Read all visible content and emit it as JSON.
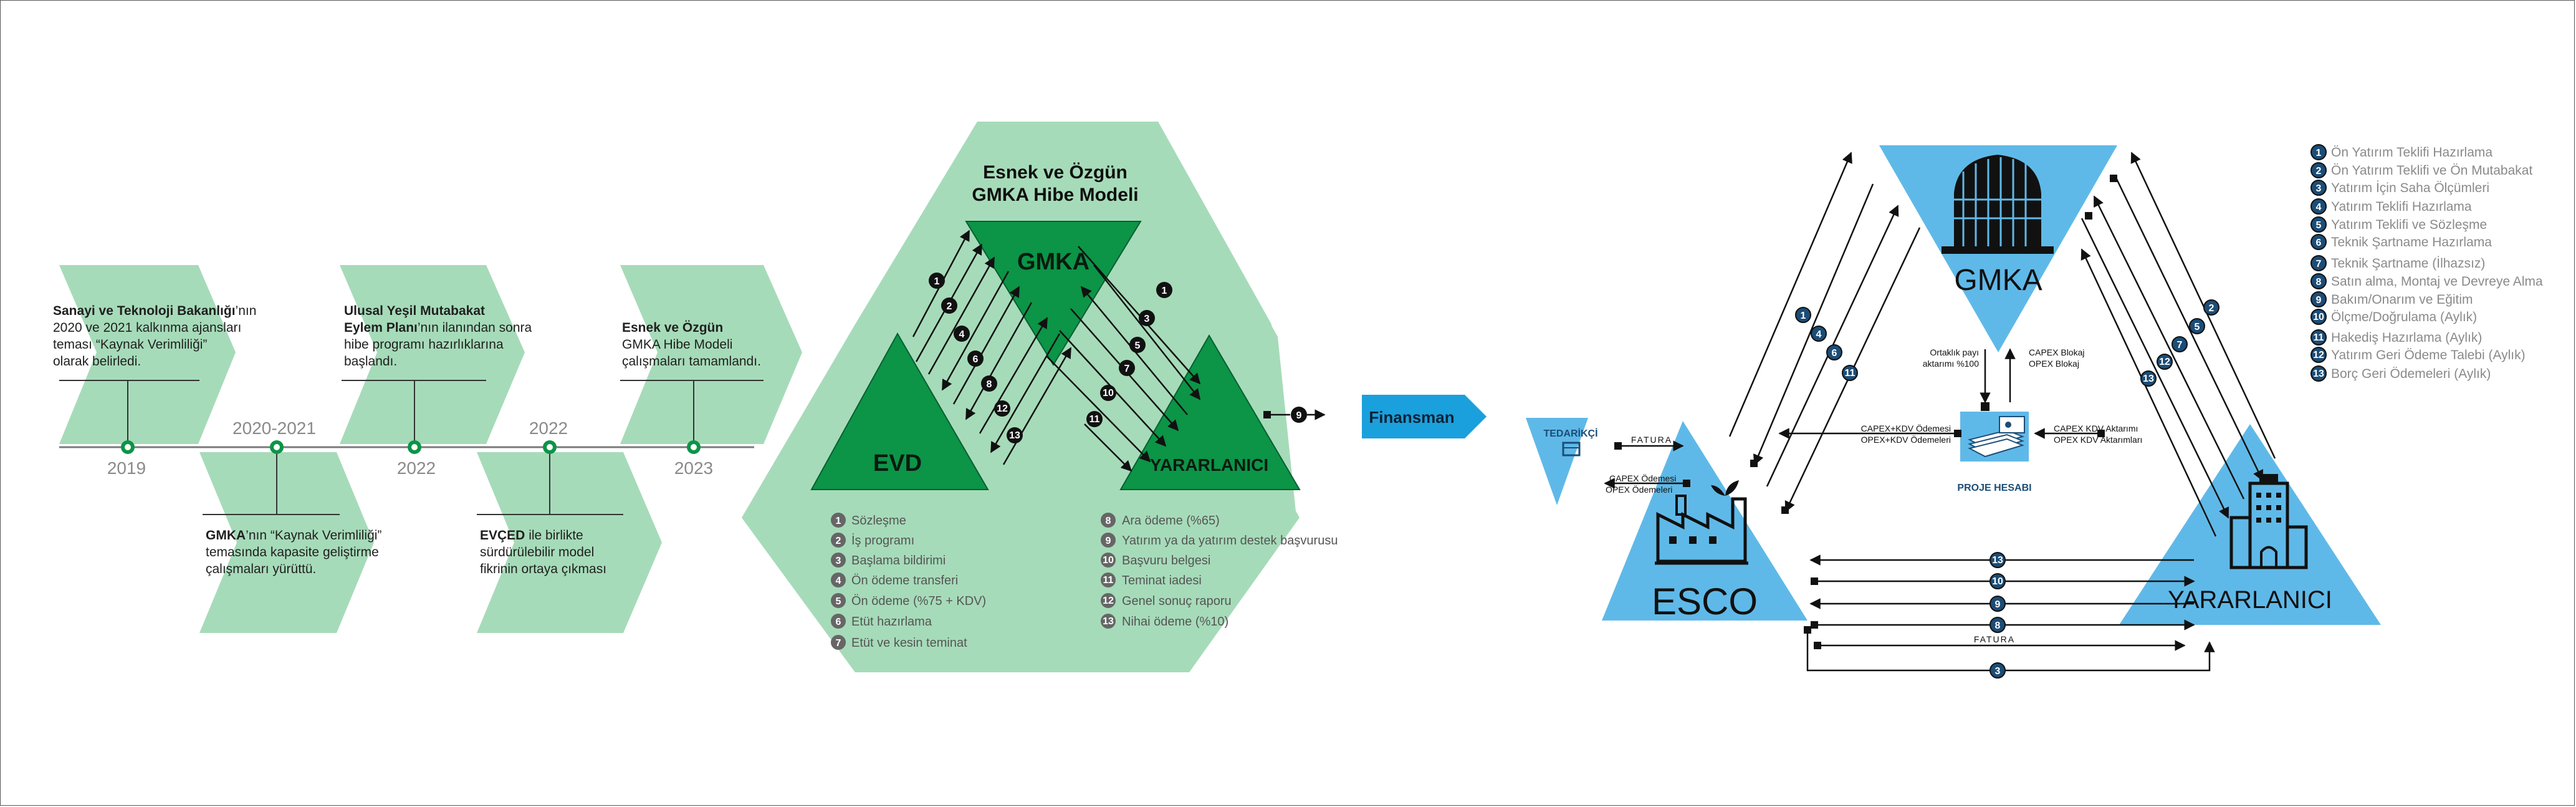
{
  "timeline": {
    "years": [
      "2019",
      "2020-2021",
      "2022",
      "2022",
      "2023"
    ],
    "entries": [
      {
        "bold": "Sanayi ve Teknoloji Bakanlığı",
        "lines": [
          "’nın",
          "2020 ve 2021 kalkınma ajansları",
          "teması “Kaynak Verimliliği”",
          "olarak belirledi."
        ]
      },
      {
        "bold": "GMKA",
        "lines": [
          "’nın “Kaynak Verimliliği”",
          "temasında kapasite geliştirme",
          "çalışmaları yürüttü."
        ]
      },
      {
        "bold": "Ulusal Yeşil Mutabakat",
        "bold2": "Eylem Planı",
        "lines": [
          "’nın ilanından sonra",
          "hibe programı hazırlıklarına",
          "başlandı."
        ]
      },
      {
        "bold": "EVÇED",
        "lines": [
          " ile birlikte",
          "sürdürülebilir model",
          "fikrinin ortaya çıkması"
        ]
      },
      {
        "bold": "Esnek ve Özgün",
        "lines": [
          "GMKA Hibe Modeli",
          "çalışmaları tamamlandı."
        ]
      }
    ]
  },
  "model": {
    "title_line1": "Esnek ve Özgün",
    "title_line2": "GMKA Hibe Modeli",
    "gmka": "GMKA",
    "evd": "EVD",
    "yararlanici": "YARARLANICI",
    "finansman": "Finansman",
    "steps_left": [
      {
        "n": "1",
        "t": "Sözleşme"
      },
      {
        "n": "2",
        "t": "İş programı"
      },
      {
        "n": "3",
        "t": "Başlama bildirimi"
      },
      {
        "n": "4",
        "t": "Ön ödeme transferi"
      },
      {
        "n": "5",
        "t": "Ön ödeme (%75 + KDV)"
      },
      {
        "n": "6",
        "t": "Etüt hazırlama"
      },
      {
        "n": "7",
        "t": "Etüt ve kesin teminat"
      }
    ],
    "steps_right": [
      {
        "n": "8",
        "t": "Ara ödeme (%65)"
      },
      {
        "n": "9",
        "t": "Yatırım ya da yatırım destek başvurusu"
      },
      {
        "n": "10",
        "t": "Başvuru belgesi"
      },
      {
        "n": "11",
        "t": "Teminat iadesi"
      },
      {
        "n": "12",
        "t": "Genel sonuç raporu"
      },
      {
        "n": "13",
        "t": "Nihai ödeme (%10)"
      }
    ]
  },
  "esco": {
    "gmka": "GMKA",
    "esco": "ESCO",
    "yararlanici": "YARARLANICI",
    "tedarikci": "TEDARİKÇİ",
    "proje_hesabi": "PROJE HESABI",
    "fatura": "FATURA",
    "fatura_bottom": "FATURA",
    "capex_opex_left": [
      "CAPEX Ödemesi",
      "OPEX Ödemeleri"
    ],
    "ortaklik": [
      "Ortaklık payı",
      "aktarımı %100"
    ],
    "capex_blokaj": [
      "CAPEX Blokaj",
      "OPEX Blokaj"
    ],
    "capex_kdv_left": [
      "CAPEX+KDV Ödemesi",
      "OPEX+KDV Ödemeleri"
    ],
    "capex_kdv_right": [
      "CAPEX KDV Aktarımı",
      "OPEX KDV Aktarımları"
    ],
    "legend": [
      {
        "n": "1",
        "t": "Ön Yatırım Teklifi Hazırlama"
      },
      {
        "n": "2",
        "t": "Ön Yatırım Teklifi ve Ön Mutabakat"
      },
      {
        "n": "3",
        "t": "Yatırım İçin Saha Ölçümleri"
      },
      {
        "n": "4",
        "t": "Yatırım Teklifi Hazırlama"
      },
      {
        "n": "5",
        "t": "Yatırım Teklifi ve Sözleşme"
      },
      {
        "n": "6",
        "t": "Teknik Şartname Hazırlama"
      },
      {
        "n": "7",
        "t": "Teknik Şartname (İlhazsız)"
      },
      {
        "n": "8",
        "t": "Satın alma, Montaj ve Devreye Alma"
      },
      {
        "n": "9",
        "t": "Bakım/Onarım ve Eğitim"
      },
      {
        "n": "10",
        "t": "Ölçme/Doğrulama (Aylık)"
      },
      {
        "n": "11",
        "t": "Hakediş Hazırlama (Aylık)"
      },
      {
        "n": "12",
        "t": "Yatırım Geri Ödeme Talebi (Aylık)"
      },
      {
        "n": "13",
        "t": "Borç Geri Ödemeleri (Aylık)"
      }
    ]
  },
  "colors": {
    "light_green": "#a6dbb9",
    "green": "#0c9447",
    "dark_green": "#087a38",
    "blue": "#5fb9e8",
    "finans_blue": "#1aa0dc",
    "navy": "#1b4d77"
  }
}
